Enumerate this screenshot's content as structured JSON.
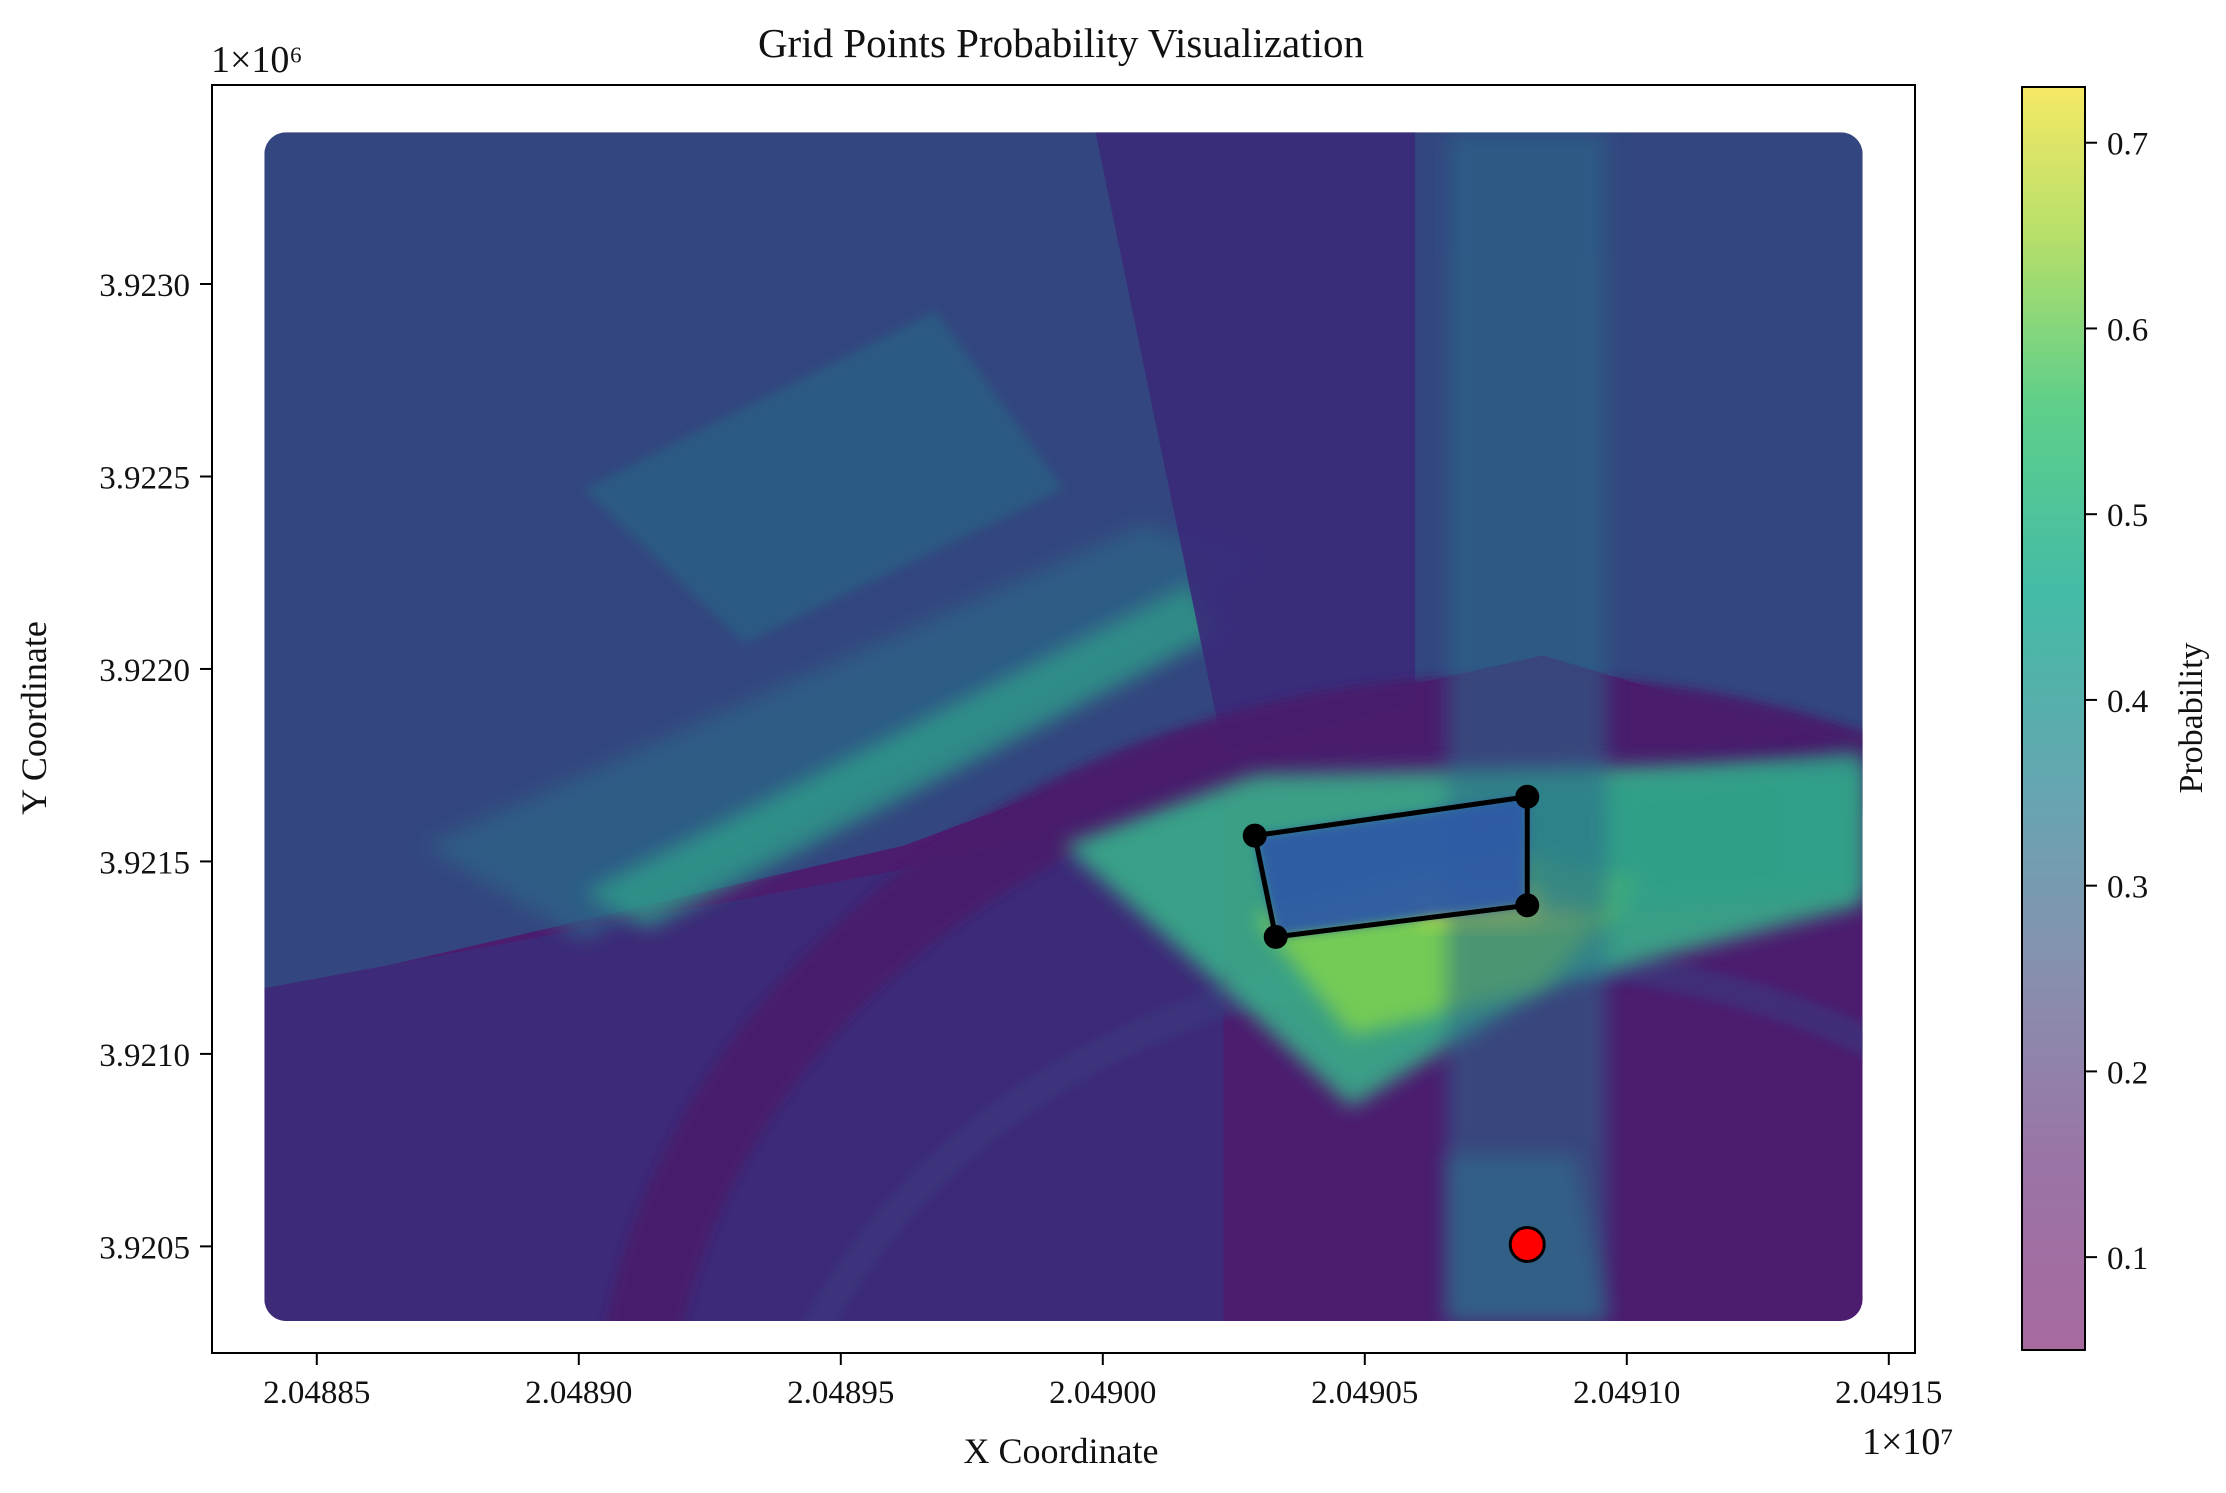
{
  "chart_data": {
    "type": "heatmap",
    "title": "Grid Points Probability Visualization",
    "xlabel": "X Coordinate",
    "ylabel": "Y Coordinate",
    "x_offset_label": "1×10⁷",
    "y_offset_label": "1×10⁶",
    "xlim": [
      2.04883,
      2.049155
    ],
    "ylim": [
      3.920223,
      3.923517
    ],
    "x_ticks": [
      2.04885,
      2.0489,
      2.04895,
      2.049,
      2.04905,
      2.0491,
      2.04915
    ],
    "x_tick_labels": [
      "2.04885",
      "2.04890",
      "2.04895",
      "2.04900",
      "2.04905",
      "2.04910",
      "2.04915"
    ],
    "y_ticks": [
      3.9205,
      3.921,
      3.9215,
      3.922,
      3.9225,
      3.923
    ],
    "y_tick_labels": [
      "3.9205",
      "3.9210",
      "3.9215",
      "3.9220",
      "3.9225",
      "3.9230"
    ],
    "grid": false,
    "colorbar": {
      "label": "Probability",
      "range": [
        0.05,
        0.73
      ],
      "ticks": [
        0.1,
        0.2,
        0.3,
        0.4,
        0.5,
        0.6,
        0.7
      ],
      "tick_labels": [
        "0.1",
        "0.2",
        "0.3",
        "0.4",
        "0.5",
        "0.6",
        "0.7"
      ],
      "colormap": "viridis",
      "alpha": 0.6
    },
    "heatmap_extent": {
      "x": [
        2.04884,
        2.049145
      ],
      "y": [
        3.920306,
        3.923394
      ]
    },
    "polygon": {
      "points": [
        {
          "x": 2.049029,
          "y": 3.921567
        },
        {
          "x": 2.049081,
          "y": 3.921668
        },
        {
          "x": 2.049081,
          "y": 3.921386
        },
        {
          "x": 2.049033,
          "y": 3.921304
        }
      ],
      "line_color": "#000000",
      "marker_color": "#000000"
    },
    "target_point": {
      "x": 2.049081,
      "y": 3.920505,
      "color": "#ff0000"
    }
  }
}
